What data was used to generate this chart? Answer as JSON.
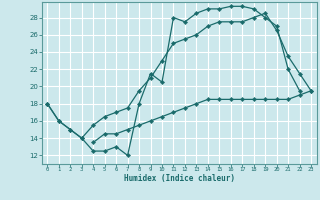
{
  "xlabel": "Humidex (Indice chaleur)",
  "bg_color": "#cce8ec",
  "grid_color": "#ffffff",
  "line_color": "#1a6b6b",
  "xlim": [
    -0.5,
    23.5
  ],
  "ylim": [
    11.0,
    29.8
  ],
  "xticks": [
    0,
    1,
    2,
    3,
    4,
    5,
    6,
    7,
    8,
    9,
    10,
    11,
    12,
    13,
    14,
    15,
    16,
    17,
    18,
    19,
    20,
    21,
    22,
    23
  ],
  "yticks": [
    12,
    14,
    16,
    18,
    20,
    22,
    24,
    26,
    28
  ],
  "line1_x": [
    0,
    1,
    2,
    3,
    4,
    5,
    6,
    7,
    8,
    9,
    10,
    11,
    12,
    13,
    14,
    15,
    16,
    17,
    18,
    19,
    20,
    21,
    22
  ],
  "line1_y": [
    18.0,
    16.0,
    15.0,
    14.0,
    12.5,
    12.5,
    13.0,
    12.0,
    18.0,
    21.5,
    20.5,
    28.0,
    27.5,
    28.5,
    29.0,
    29.0,
    29.3,
    29.3,
    29.0,
    28.0,
    27.0,
    22.0,
    19.5
  ],
  "line2_x": [
    0,
    1,
    2,
    3,
    4,
    5,
    6,
    7,
    8,
    9,
    10,
    11,
    12,
    13,
    14,
    15,
    16,
    17,
    18,
    19,
    20,
    21,
    22,
    23
  ],
  "line2_y": [
    18.0,
    16.0,
    15.0,
    14.0,
    15.5,
    16.5,
    17.0,
    17.5,
    19.5,
    21.0,
    23.0,
    25.0,
    25.5,
    26.0,
    27.0,
    27.5,
    27.5,
    27.5,
    28.0,
    28.5,
    26.5,
    23.5,
    21.5,
    19.5
  ],
  "line3_x": [
    4,
    5,
    6,
    7,
    8,
    9,
    10,
    11,
    12,
    13,
    14,
    15,
    16,
    17,
    18,
    19,
    20,
    21,
    22,
    23
  ],
  "line3_y": [
    13.5,
    14.5,
    14.5,
    15.0,
    15.5,
    16.0,
    16.5,
    17.0,
    17.5,
    18.0,
    18.5,
    18.5,
    18.5,
    18.5,
    18.5,
    18.5,
    18.5,
    18.5,
    19.0,
    19.5
  ]
}
